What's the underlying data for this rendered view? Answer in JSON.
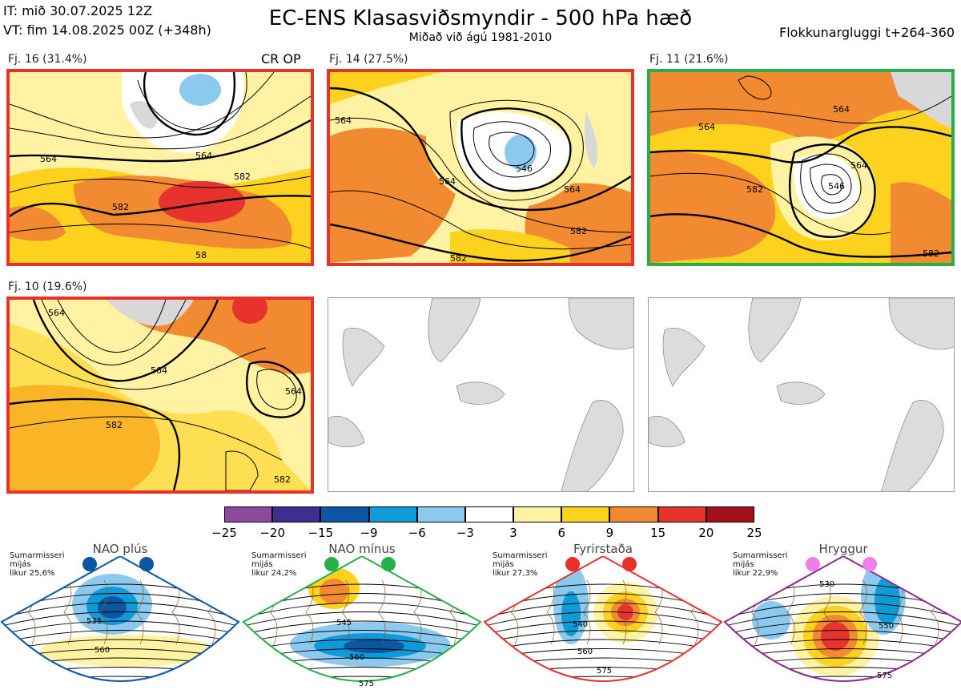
{
  "header": {
    "init_time": "IT: mið 30.07.2025 12Z",
    "valid_time": "VT: fim 14.08.2025 00Z  (+348h)",
    "title": "EC-ENS Klasasviðsmyndir - 500 hPa hæð",
    "subtitle": "Miðað við ágú 1981-2010",
    "window": "Flokkunargluggi t+264-360"
  },
  "panels": [
    {
      "label": "Fj. 16 (31.4%)",
      "tag": "CR OP",
      "border": "#e8312b",
      "contours": [
        "564",
        "564",
        "582",
        "582",
        "58"
      ]
    },
    {
      "label": "Fj. 14 (27.5%)",
      "tag": "",
      "border": "#e8312b",
      "contours": [
        "564",
        "546",
        "564",
        "564",
        "582",
        "582"
      ]
    },
    {
      "label": "Fj. 11 (21.6%)",
      "tag": "",
      "border": "#27b04a",
      "contours": [
        "564",
        "564",
        "564",
        "546",
        "582",
        "582"
      ]
    },
    {
      "label": "Fj. 10 (19.6%)",
      "tag": "",
      "border": "#e8312b",
      "contours": [
        "564",
        "564",
        "582",
        "564",
        "582"
      ]
    }
  ],
  "colorbar": {
    "colors": [
      "#8b4a9c",
      "#3f2d8f",
      "#0b57a4",
      "#0f9ad8",
      "#8bc9ee",
      "#ffffff",
      "#fff3a3",
      "#fdd21e",
      "#f28a32",
      "#e8322e",
      "#a3101a"
    ],
    "ticks": [
      "−25",
      "−20",
      "−15",
      "−9",
      "−6",
      "−3",
      "3",
      "6",
      "9",
      "15",
      "20",
      "25"
    ]
  },
  "regimes": [
    {
      "name": "NAO plús",
      "info": [
        "Sumarmisseri",
        "mijás",
        "likur 25,6%"
      ],
      "color": "#0b57a4",
      "dots": "#0b57a4",
      "contours": [
        "535",
        "560"
      ]
    },
    {
      "name": "NAO mínus",
      "info": [
        "Sumarmisseri",
        "mijás",
        "likur 24,2%"
      ],
      "color": "#27b04a",
      "dots": "#27b04a",
      "contours": [
        "545",
        "560",
        "575"
      ]
    },
    {
      "name": "Fyrirstaða",
      "info": [
        "Sumarmisseri",
        "mijás",
        "likur 27,3%"
      ],
      "color": "#e8312b",
      "dots": "#e8312b",
      "contours": [
        "540",
        "560",
        "575"
      ]
    },
    {
      "name": "Hryggur",
      "info": [
        "Sumarmisseri",
        "mijás",
        "likur 22,9%"
      ],
      "color": "#8b2a8f",
      "dots": "#ee7ee8",
      "contours": [
        "530",
        "550",
        "575"
      ]
    }
  ]
}
